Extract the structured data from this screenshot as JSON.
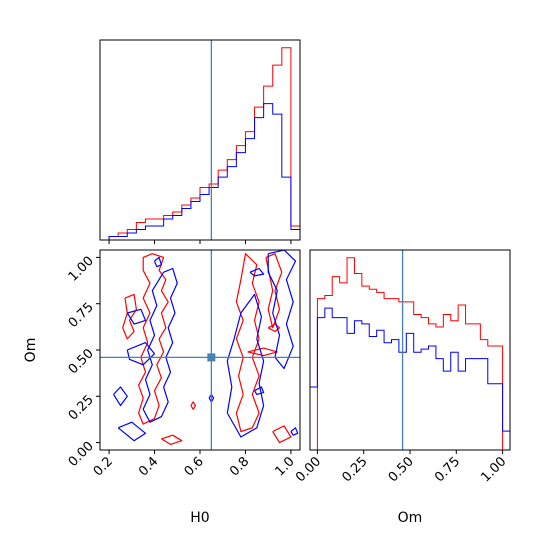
{
  "figure": {
    "background": "#ffffff",
    "truth_color": "#4682b4",
    "series_colors": [
      "#ff0000",
      "#0000ff"
    ]
  },
  "chart_data": [
    {
      "type": "histogram",
      "panel": "H0-marginal",
      "parameter": "H0",
      "xlim": [
        0.16,
        1.04
      ],
      "truth": 0.65,
      "y_ticks_visible": false,
      "bin_edges": [
        0.16,
        0.2,
        0.24,
        0.28,
        0.32,
        0.36,
        0.4,
        0.44,
        0.48,
        0.52,
        0.56,
        0.6,
        0.64,
        0.68,
        0.72,
        0.76,
        0.8,
        0.84,
        0.88,
        0.92,
        0.96,
        1.0,
        1.04
      ],
      "series": [
        {
          "color": "#ff0000",
          "counts": [
            0,
            1,
            2,
            3,
            5,
            6,
            6,
            7,
            8,
            10,
            12,
            15,
            16,
            20,
            23,
            27,
            31,
            38,
            44,
            50,
            55,
            4
          ]
        },
        {
          "color": "#0000ff",
          "counts": [
            0,
            1,
            1,
            2,
            3,
            4,
            4,
            6,
            7,
            9,
            11,
            13,
            15,
            18,
            21,
            25,
            29,
            35,
            39,
            36,
            18,
            3
          ]
        }
      ]
    },
    {
      "type": "contour",
      "panel": "H0-Om-joint",
      "x_parameter": "H0",
      "y_parameter": "Om",
      "xlabel": "H0",
      "ylabel": "Om",
      "xlim": [
        0.16,
        1.04
      ],
      "ylim": [
        -0.04,
        1.04
      ],
      "xticks": [
        "0.2",
        "0.4",
        "0.6",
        "0.8",
        "1.0"
      ],
      "yticks": [
        "0.00",
        "0.25",
        "0.50",
        "0.75",
        "1.00"
      ],
      "truth": {
        "x": 0.65,
        "y": 0.46
      },
      "series": [
        {
          "color": "#ff0000",
          "contours": [
            [
              [
                0.35,
                1.0
              ],
              [
                0.39,
                1.02
              ],
              [
                0.44,
                1.0
              ],
              [
                0.42,
                0.93
              ],
              [
                0.45,
                0.88
              ],
              [
                0.43,
                0.82
              ],
              [
                0.46,
                0.76
              ],
              [
                0.43,
                0.7
              ],
              [
                0.45,
                0.62
              ],
              [
                0.42,
                0.56
              ],
              [
                0.44,
                0.49
              ],
              [
                0.41,
                0.42
              ],
              [
                0.43,
                0.35
              ],
              [
                0.4,
                0.28
              ],
              [
                0.42,
                0.2
              ],
              [
                0.4,
                0.13
              ],
              [
                0.35,
                0.1
              ],
              [
                0.33,
                0.16
              ],
              [
                0.35,
                0.24
              ],
              [
                0.33,
                0.31
              ],
              [
                0.36,
                0.38
              ],
              [
                0.34,
                0.46
              ],
              [
                0.37,
                0.54
              ],
              [
                0.35,
                0.62
              ],
              [
                0.38,
                0.7
              ],
              [
                0.35,
                0.78
              ],
              [
                0.38,
                0.86
              ],
              [
                0.35,
                0.93
              ],
              [
                0.35,
                1.0
              ]
            ],
            [
              [
                0.27,
                0.78
              ],
              [
                0.31,
                0.8
              ],
              [
                0.32,
                0.72
              ],
              [
                0.29,
                0.66
              ],
              [
                0.31,
                0.6
              ],
              [
                0.28,
                0.56
              ],
              [
                0.26,
                0.62
              ],
              [
                0.28,
                0.7
              ],
              [
                0.27,
                0.78
              ]
            ],
            [
              [
                0.43,
                0.02
              ],
              [
                0.48,
                0.04
              ],
              [
                0.52,
                0.01
              ],
              [
                0.47,
                -0.01
              ],
              [
                0.43,
                0.02
              ]
            ],
            [
              [
                0.78,
                0.88
              ],
              [
                0.8,
                1.02
              ],
              [
                0.85,
                0.96
              ],
              [
                0.83,
                0.86
              ],
              [
                0.86,
                0.76
              ],
              [
                0.84,
                0.66
              ],
              [
                0.86,
                0.56
              ],
              [
                0.83,
                0.46
              ],
              [
                0.86,
                0.36
              ],
              [
                0.83,
                0.26
              ],
              [
                0.86,
                0.16
              ],
              [
                0.83,
                0.08
              ],
              [
                0.78,
                0.06
              ],
              [
                0.76,
                0.16
              ],
              [
                0.79,
                0.26
              ],
              [
                0.77,
                0.36
              ],
              [
                0.79,
                0.46
              ],
              [
                0.76,
                0.56
              ],
              [
                0.79,
                0.66
              ],
              [
                0.76,
                0.76
              ],
              [
                0.78,
                0.88
              ]
            ],
            [
              [
                0.89,
                1.0
              ],
              [
                0.93,
                1.02
              ],
              [
                0.96,
                0.92
              ],
              [
                0.93,
                0.82
              ],
              [
                0.95,
                0.72
              ],
              [
                0.92,
                0.62
              ],
              [
                0.9,
                0.72
              ],
              [
                0.92,
                0.82
              ],
              [
                0.89,
                1.0
              ]
            ],
            [
              [
                0.81,
                0.49
              ],
              [
                0.88,
                0.51
              ],
              [
                0.94,
                0.49
              ],
              [
                0.88,
                0.47
              ],
              [
                0.81,
                0.49
              ]
            ],
            [
              [
                0.92,
                0.06
              ],
              [
                0.97,
                0.09
              ],
              [
                1.0,
                0.03
              ],
              [
                0.95,
                0.0
              ],
              [
                0.92,
                0.06
              ]
            ],
            [
              [
                0.56,
                0.2
              ],
              [
                0.57,
                0.22
              ],
              [
                0.58,
                0.2
              ],
              [
                0.57,
                0.18
              ],
              [
                0.56,
                0.2
              ]
            ],
            [
              [
                0.9,
                0.62
              ],
              [
                0.93,
                0.64
              ],
              [
                0.95,
                0.62
              ],
              [
                0.93,
                0.6
              ],
              [
                0.9,
                0.62
              ]
            ]
          ]
        },
        {
          "color": "#0000ff",
          "contours": [
            [
              [
                0.44,
                0.92
              ],
              [
                0.48,
                0.94
              ],
              [
                0.5,
                0.86
              ],
              [
                0.47,
                0.78
              ],
              [
                0.49,
                0.7
              ],
              [
                0.46,
                0.62
              ],
              [
                0.48,
                0.54
              ],
              [
                0.45,
                0.46
              ],
              [
                0.47,
                0.38
              ],
              [
                0.44,
                0.3
              ],
              [
                0.46,
                0.22
              ],
              [
                0.43,
                0.14
              ],
              [
                0.38,
                0.11
              ],
              [
                0.35,
                0.18
              ],
              [
                0.38,
                0.26
              ],
              [
                0.36,
                0.34
              ],
              [
                0.39,
                0.42
              ],
              [
                0.37,
                0.5
              ],
              [
                0.4,
                0.58
              ],
              [
                0.38,
                0.66
              ],
              [
                0.41,
                0.74
              ],
              [
                0.39,
                0.82
              ],
              [
                0.44,
                0.92
              ]
            ],
            [
              [
                0.22,
                0.26
              ],
              [
                0.25,
                0.3
              ],
              [
                0.28,
                0.25
              ],
              [
                0.25,
                0.2
              ],
              [
                0.22,
                0.26
              ]
            ],
            [
              [
                0.28,
                0.5
              ],
              [
                0.36,
                0.54
              ],
              [
                0.4,
                0.48
              ],
              [
                0.35,
                0.42
              ],
              [
                0.29,
                0.45
              ],
              [
                0.28,
                0.5
              ]
            ],
            [
              [
                0.28,
                0.7
              ],
              [
                0.34,
                0.72
              ],
              [
                0.36,
                0.66
              ],
              [
                0.31,
                0.64
              ],
              [
                0.28,
                0.7
              ]
            ],
            [
              [
                0.24,
                0.08
              ],
              [
                0.3,
                0.11
              ],
              [
                0.36,
                0.05
              ],
              [
                0.31,
                0.01
              ],
              [
                0.24,
                0.08
              ]
            ],
            [
              [
                0.4,
                0.98
              ],
              [
                0.42,
                1.0
              ],
              [
                0.43,
                0.96
              ],
              [
                0.41,
                0.95
              ],
              [
                0.4,
                0.98
              ]
            ],
            [
              [
                0.64,
                0.24
              ],
              [
                0.65,
                0.26
              ],
              [
                0.66,
                0.24
              ],
              [
                0.65,
                0.22
              ],
              [
                0.64,
                0.24
              ]
            ],
            [
              [
                0.72,
                0.16
              ],
              [
                0.74,
                0.3
              ],
              [
                0.72,
                0.44
              ],
              [
                0.75,
                0.56
              ],
              [
                0.78,
                0.7
              ],
              [
                0.84,
                0.8
              ],
              [
                0.87,
                0.68
              ],
              [
                0.85,
                0.56
              ],
              [
                0.88,
                0.44
              ],
              [
                0.86,
                0.32
              ],
              [
                0.88,
                0.2
              ],
              [
                0.85,
                0.08
              ],
              [
                0.78,
                0.03
              ],
              [
                0.72,
                0.16
              ]
            ],
            [
              [
                0.9,
                1.02
              ],
              [
                0.97,
                1.04
              ],
              [
                1.02,
                0.98
              ],
              [
                0.98,
                0.88
              ],
              [
                1.01,
                0.76
              ],
              [
                0.98,
                0.64
              ],
              [
                1.01,
                0.52
              ],
              [
                0.97,
                0.4
              ],
              [
                0.93,
                0.46
              ],
              [
                0.95,
                0.58
              ],
              [
                0.92,
                0.7
              ],
              [
                0.94,
                0.82
              ],
              [
                0.9,
                0.92
              ],
              [
                0.9,
                1.02
              ]
            ],
            [
              [
                0.82,
                0.92
              ],
              [
                0.86,
                0.94
              ],
              [
                0.88,
                0.91
              ],
              [
                0.84,
                0.9
              ],
              [
                0.82,
                0.92
              ]
            ],
            [
              [
                0.84,
                0.28
              ],
              [
                0.87,
                0.3
              ],
              [
                0.88,
                0.27
              ],
              [
                0.85,
                0.26
              ],
              [
                0.84,
                0.28
              ]
            ],
            [
              [
                1.0,
                0.06
              ],
              [
                1.02,
                0.08
              ],
              [
                1.03,
                0.05
              ],
              [
                1.01,
                0.04
              ],
              [
                1.0,
                0.06
              ]
            ]
          ]
        }
      ]
    },
    {
      "type": "histogram",
      "panel": "Om-marginal",
      "parameter": "Om",
      "xlabel": "Om",
      "xlim": [
        -0.04,
        1.04
      ],
      "xticks": [
        "0.00",
        "0.25",
        "0.50",
        "0.75",
        "1.00"
      ],
      "truth": 0.46,
      "y_ticks_visible": false,
      "bin_edges": [
        -0.04,
        0.0,
        0.04,
        0.08,
        0.12,
        0.16,
        0.2,
        0.24,
        0.28,
        0.32,
        0.36,
        0.4,
        0.44,
        0.48,
        0.52,
        0.56,
        0.6,
        0.64,
        0.68,
        0.72,
        0.76,
        0.8,
        0.84,
        0.88,
        0.92,
        0.96,
        1.0,
        1.04
      ],
      "series": [
        {
          "color": "#ff0000",
          "counts": [
            0,
            48,
            49,
            55,
            53,
            61,
            56,
            52,
            51,
            50,
            48,
            48,
            47,
            47,
            43,
            42,
            40,
            39,
            43,
            41,
            46,
            40,
            40,
            35,
            33,
            33,
            0
          ]
        },
        {
          "color": "#0000ff",
          "counts": [
            20,
            42,
            45,
            42,
            42,
            37,
            41,
            40,
            36,
            38,
            34,
            35,
            31,
            37,
            31,
            32,
            33,
            29,
            25,
            31,
            25,
            29,
            29,
            29,
            21,
            21,
            6
          ]
        }
      ]
    }
  ]
}
